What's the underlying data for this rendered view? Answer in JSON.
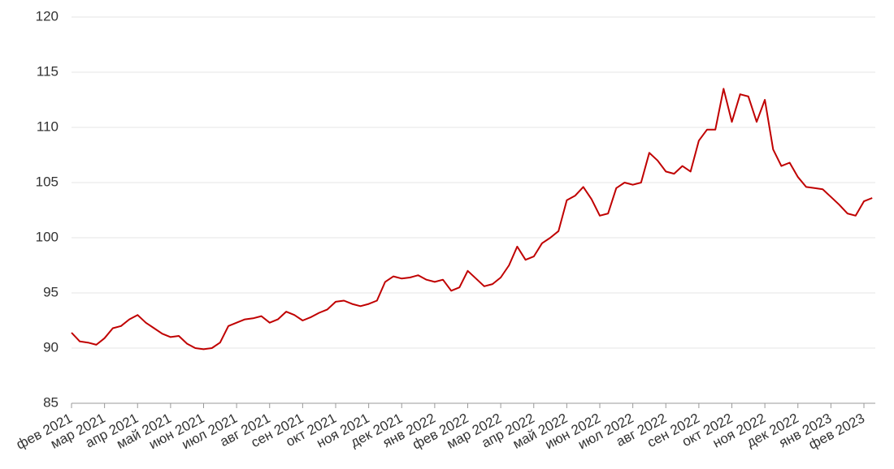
{
  "chart_data": {
    "type": "line",
    "categories": [
      "фев 2021",
      null,
      null,
      null,
      "мар 2021",
      null,
      null,
      null,
      "апр 2021",
      null,
      null,
      null,
      "май 2021",
      null,
      null,
      null,
      "июн 2021",
      null,
      null,
      null,
      "июл 2021",
      null,
      null,
      null,
      "авг 2021",
      null,
      null,
      null,
      "сен 2021",
      null,
      null,
      null,
      "окт 2021",
      null,
      null,
      null,
      "ноя 2021",
      null,
      null,
      null,
      "дек 2021",
      null,
      null,
      null,
      "янв 2022",
      null,
      null,
      null,
      "фев 2022",
      null,
      null,
      null,
      "мар 2022",
      null,
      null,
      null,
      "апр 2022",
      null,
      null,
      null,
      "май 2022",
      null,
      null,
      null,
      "июн 2022",
      null,
      null,
      null,
      "июл 2022",
      null,
      null,
      null,
      "авг 2022",
      null,
      null,
      null,
      "сен 2022",
      null,
      null,
      null,
      "окт 2022",
      null,
      null,
      null,
      "ноя 2022",
      null,
      null,
      null,
      "дек 2022",
      null,
      null,
      null,
      "янв 2023",
      null,
      null,
      null,
      "фев 2023",
      null
    ],
    "series": [
      {
        "name": null,
        "color": "#c00000",
        "values": [
          91.4,
          90.6,
          90.5,
          90.3,
          90.9,
          91.8,
          92.0,
          92.6,
          93.0,
          92.3,
          91.8,
          91.3,
          91.0,
          91.1,
          90.4,
          90.0,
          89.9,
          90.0,
          90.5,
          92.0,
          92.3,
          92.6,
          92.7,
          92.9,
          92.3,
          92.6,
          93.3,
          93.0,
          92.5,
          92.8,
          93.2,
          93.5,
          94.2,
          94.3,
          94.0,
          93.8,
          94.0,
          94.3,
          96.0,
          96.5,
          96.3,
          96.4,
          96.6,
          96.2,
          96.0,
          96.2,
          95.2,
          95.5,
          97.0,
          96.3,
          95.6,
          95.8,
          96.4,
          97.5,
          99.2,
          98.0,
          98.3,
          99.5,
          100.0,
          100.6,
          103.4,
          103.8,
          104.6,
          103.5,
          102.0,
          102.2,
          104.5,
          105.0,
          104.8,
          105.0,
          107.7,
          107.0,
          106.0,
          105.8,
          106.5,
          106.0,
          108.8,
          109.8,
          109.8,
          113.5,
          110.5,
          113.0,
          112.8,
          110.5,
          112.5,
          108.0,
          106.5,
          106.8,
          105.5,
          104.6,
          104.5,
          104.4,
          103.7,
          103.0,
          102.2,
          102.0,
          103.3,
          103.6
        ]
      }
    ],
    "ylim": [
      85,
      120
    ],
    "yticks": [
      85,
      90,
      95,
      100,
      105,
      110,
      115,
      120
    ],
    "grid": true
  }
}
